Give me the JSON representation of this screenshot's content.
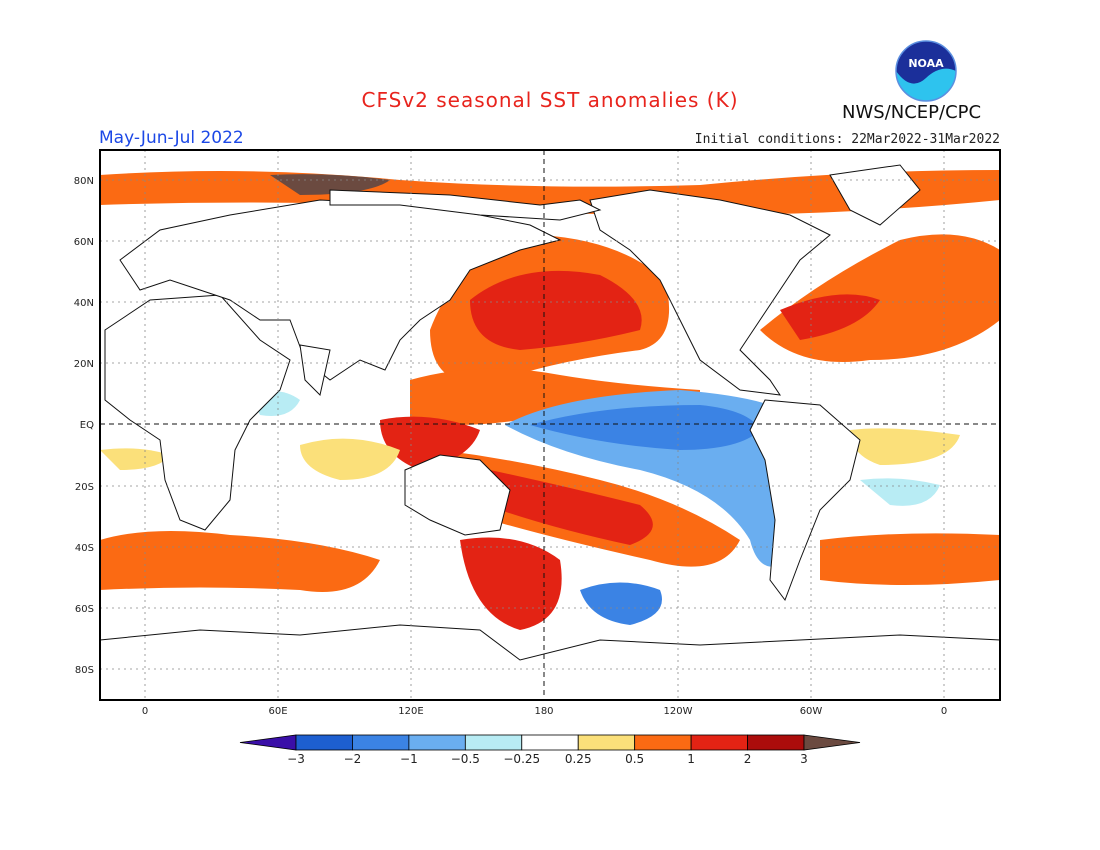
{
  "header": {
    "title": "CFSv2 seasonal SST anomalies (K)",
    "season": "May-Jun-Jul 2022",
    "initial_conditions": "Initial conditions: 22Mar2022-31Mar2022",
    "agency": "NWS/NCEP/CPC",
    "logo_text": "NOAA"
  },
  "map": {
    "lat_ticks": [
      "80N",
      "60N",
      "40N",
      "20N",
      "EQ",
      "20S",
      "40S",
      "60S",
      "80S"
    ],
    "lon_ticks": [
      "0",
      "60E",
      "120E",
      "180",
      "120W",
      "60W",
      "0"
    ]
  },
  "colorbar": {
    "labels": [
      "-3",
      "-2",
      "-1",
      "-0.5",
      "-0.25",
      "0.25",
      "0.5",
      "1",
      "2",
      "3"
    ],
    "colors": [
      "#3a0fa8",
      "#1d5fd0",
      "#3b83e4",
      "#6aaef0",
      "#b8ecf4",
      "#ffffff",
      "#fbe07a",
      "#fb6a13",
      "#e32314",
      "#ab0c0b",
      "#6b4a40"
    ]
  },
  "colors": {
    "cold_strong": "#3b83e4",
    "cold_weak": "#b8ecf4",
    "warm_weak": "#fbe07a",
    "warm_mid": "#fb6a13",
    "warm_strong": "#e32314",
    "warm_extreme": "#ab0c0b"
  }
}
